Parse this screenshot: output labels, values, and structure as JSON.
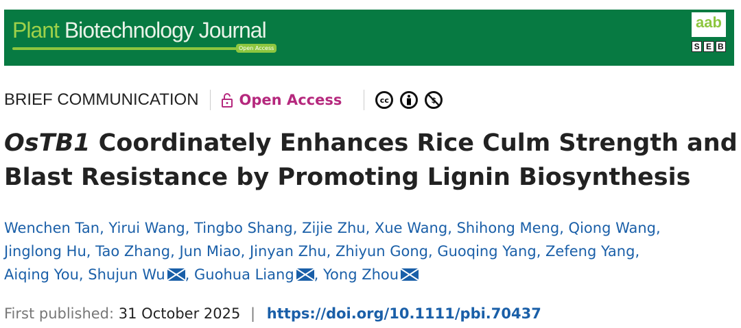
{
  "banner": {
    "journal_part1": "Plant",
    "journal_part2": " Biotechnology Journal",
    "open_access_tag": "Open Access",
    "logo1": "aab",
    "logo2": [
      "S",
      "E",
      "B"
    ]
  },
  "meta": {
    "type": "BRIEF COMMUNICATION",
    "open_access": "Open Access",
    "license_icons": [
      "cc-icon",
      "by-icon",
      "nc-icon"
    ],
    "cc_text": "cc"
  },
  "title": {
    "italic": "OsTB1",
    "rest": " Coordinately Enhances Rice Culm Strength and Blast Resistance by Promoting Lignin Biosynthesis"
  },
  "authors": [
    "Wenchen Tan",
    "Yirui Wang",
    "Tingbo Shang",
    "Zijie Zhu",
    "Xue Wang",
    "Shihong Meng",
    "Qiong Wang",
    "Jinglong Hu",
    "Tao Zhang",
    "Jun Miao",
    "Jinyan Zhu",
    "Zhiyun Gong",
    "Guoqing Yang",
    "Zefeng Yang",
    "Aiqing You",
    "Shujun Wu",
    "Guohua Liang",
    "Yong Zhou"
  ],
  "corresponding": [
    "Shujun Wu",
    "Guohua Liang",
    "Yong Zhou"
  ],
  "published": {
    "label": "First published:",
    "date": "31 October 2025",
    "sep": "|",
    "doi": "https://doi.org/10.1111/pbi.70437"
  },
  "colors": {
    "banner": "#077a42",
    "accent": "#b5287d",
    "link": "#1a5fa8"
  }
}
